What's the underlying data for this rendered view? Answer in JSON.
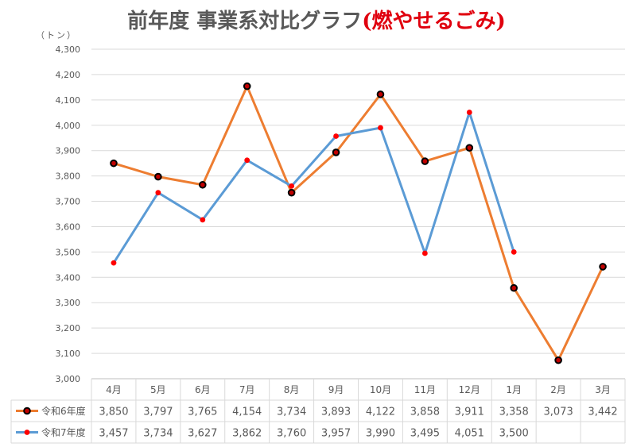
{
  "title": {
    "main": "前年度 事業系対比グラフ",
    "accent": "(燃やせるごみ)"
  },
  "unit_label": "（トン）",
  "chart_data": {
    "type": "line",
    "title": "前年度 事業系対比グラフ(燃やせるごみ)",
    "ylabel": "（トン）",
    "xlabel": "",
    "ylim": [
      3000,
      4300
    ],
    "ytick_step": 100,
    "yticks": [
      "3,000",
      "3,100",
      "3,200",
      "3,300",
      "3,400",
      "3,500",
      "3,600",
      "3,700",
      "3,800",
      "3,900",
      "4,000",
      "4,100",
      "4,200",
      "4,300"
    ],
    "categories": [
      "4月",
      "5月",
      "6月",
      "7月",
      "8月",
      "9月",
      "10月",
      "11月",
      "12月",
      "1月",
      "2月",
      "3月"
    ],
    "grid": true,
    "legend_placement": "data table below chart",
    "series": [
      {
        "name": "令和6年度",
        "color": "#ed7d31",
        "marker": "black-outlined-red",
        "values": [
          3850,
          3797,
          3765,
          4154,
          3734,
          3893,
          4122,
          3858,
          3911,
          3358,
          3073,
          3442
        ],
        "labels": [
          "3,850",
          "3,797",
          "3,765",
          "4,154",
          "3,734",
          "3,893",
          "4,122",
          "3,858",
          "3,911",
          "3,358",
          "3,073",
          "3,442"
        ]
      },
      {
        "name": "令和7年度",
        "color": "#5b9bd5",
        "marker": "red-dot",
        "values": [
          3457,
          3734,
          3627,
          3862,
          3760,
          3957,
          3990,
          3495,
          4051,
          3500,
          null,
          null
        ],
        "labels": [
          "3,457",
          "3,734",
          "3,627",
          "3,862",
          "3,760",
          "3,957",
          "3,990",
          "3,495",
          "4,051",
          "3,500",
          "",
          ""
        ]
      }
    ]
  }
}
